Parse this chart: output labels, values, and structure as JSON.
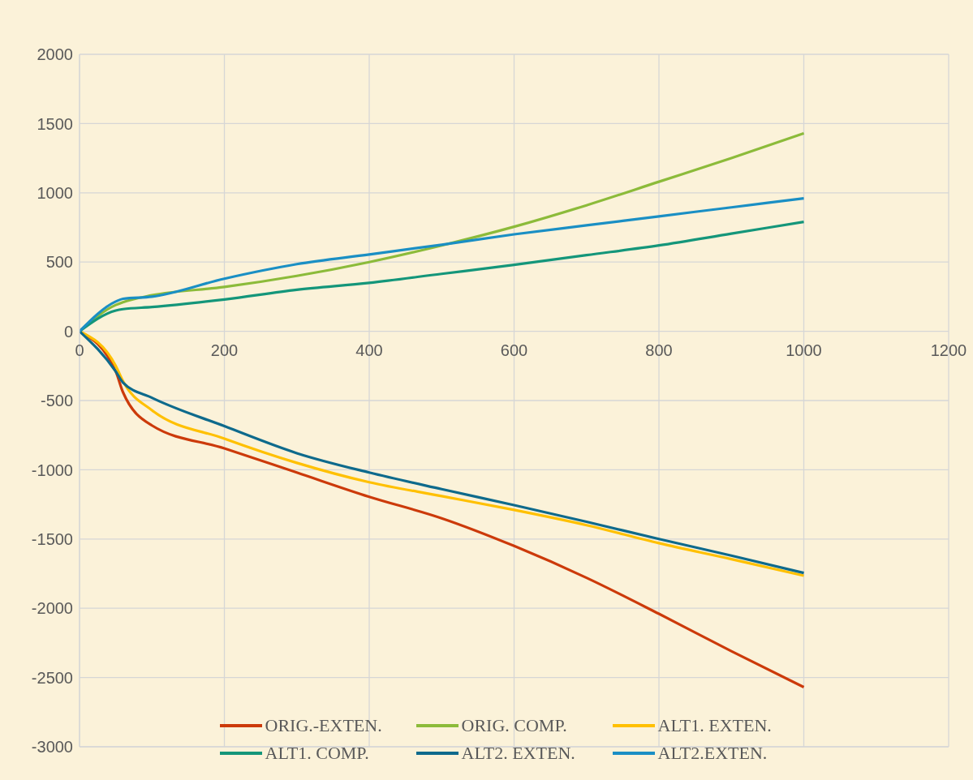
{
  "chart_data": {
    "type": "line",
    "x": [
      0,
      50,
      60,
      100,
      200,
      300,
      400,
      500,
      600,
      700,
      800,
      900,
      1000
    ],
    "series": [
      {
        "name": "ORIG.-EXTEN.",
        "color": "#cc3a0a",
        "values": [
          0,
          -290,
          -440,
          -680,
          -845,
          -1020,
          -1195,
          -1350,
          -1550,
          -1780,
          -2040,
          -2310,
          -2570
        ]
      },
      {
        "name": "ORIG. COMP.",
        "color": "#8cbb3a",
        "values": [
          0,
          190,
          210,
          260,
          320,
          400,
          500,
          620,
          755,
          910,
          1080,
          1250,
          1430
        ]
      },
      {
        "name": "ALT1. EXTEN.",
        "color": "#ffc000",
        "values": [
          0,
          -250,
          -360,
          -570,
          -775,
          -950,
          -1090,
          -1190,
          -1290,
          -1400,
          -1530,
          -1645,
          -1765
        ]
      },
      {
        "name": "ALT1. COMP.",
        "color": "#14967a",
        "values": [
          0,
          150,
          160,
          175,
          230,
          300,
          350,
          415,
          480,
          550,
          620,
          705,
          790
        ]
      },
      {
        "name": "ALT2. EXTEN.",
        "color": "#0e6a8c",
        "values": [
          0,
          -290,
          -370,
          -480,
          -685,
          -880,
          -1020,
          -1140,
          -1255,
          -1375,
          -1500,
          -1620,
          -1745
        ]
      },
      {
        "name": "ALT2.EXTEN.",
        "color": "#1a8fc4",
        "values": [
          0,
          215,
          235,
          250,
          380,
          485,
          555,
          625,
          700,
          765,
          830,
          895,
          960
        ]
      }
    ],
    "xlim": [
      0,
      1200
    ],
    "xticks": [
      0,
      200,
      400,
      600,
      800,
      1000,
      1200
    ],
    "ylim": [
      -3000,
      2000
    ],
    "yticks": [
      -3000,
      -2500,
      -2000,
      -1500,
      -1000,
      -500,
      0,
      500,
      1000,
      1500,
      2000
    ],
    "grid": true,
    "legend": "bottom",
    "marker": "none",
    "line_style": "solid"
  }
}
